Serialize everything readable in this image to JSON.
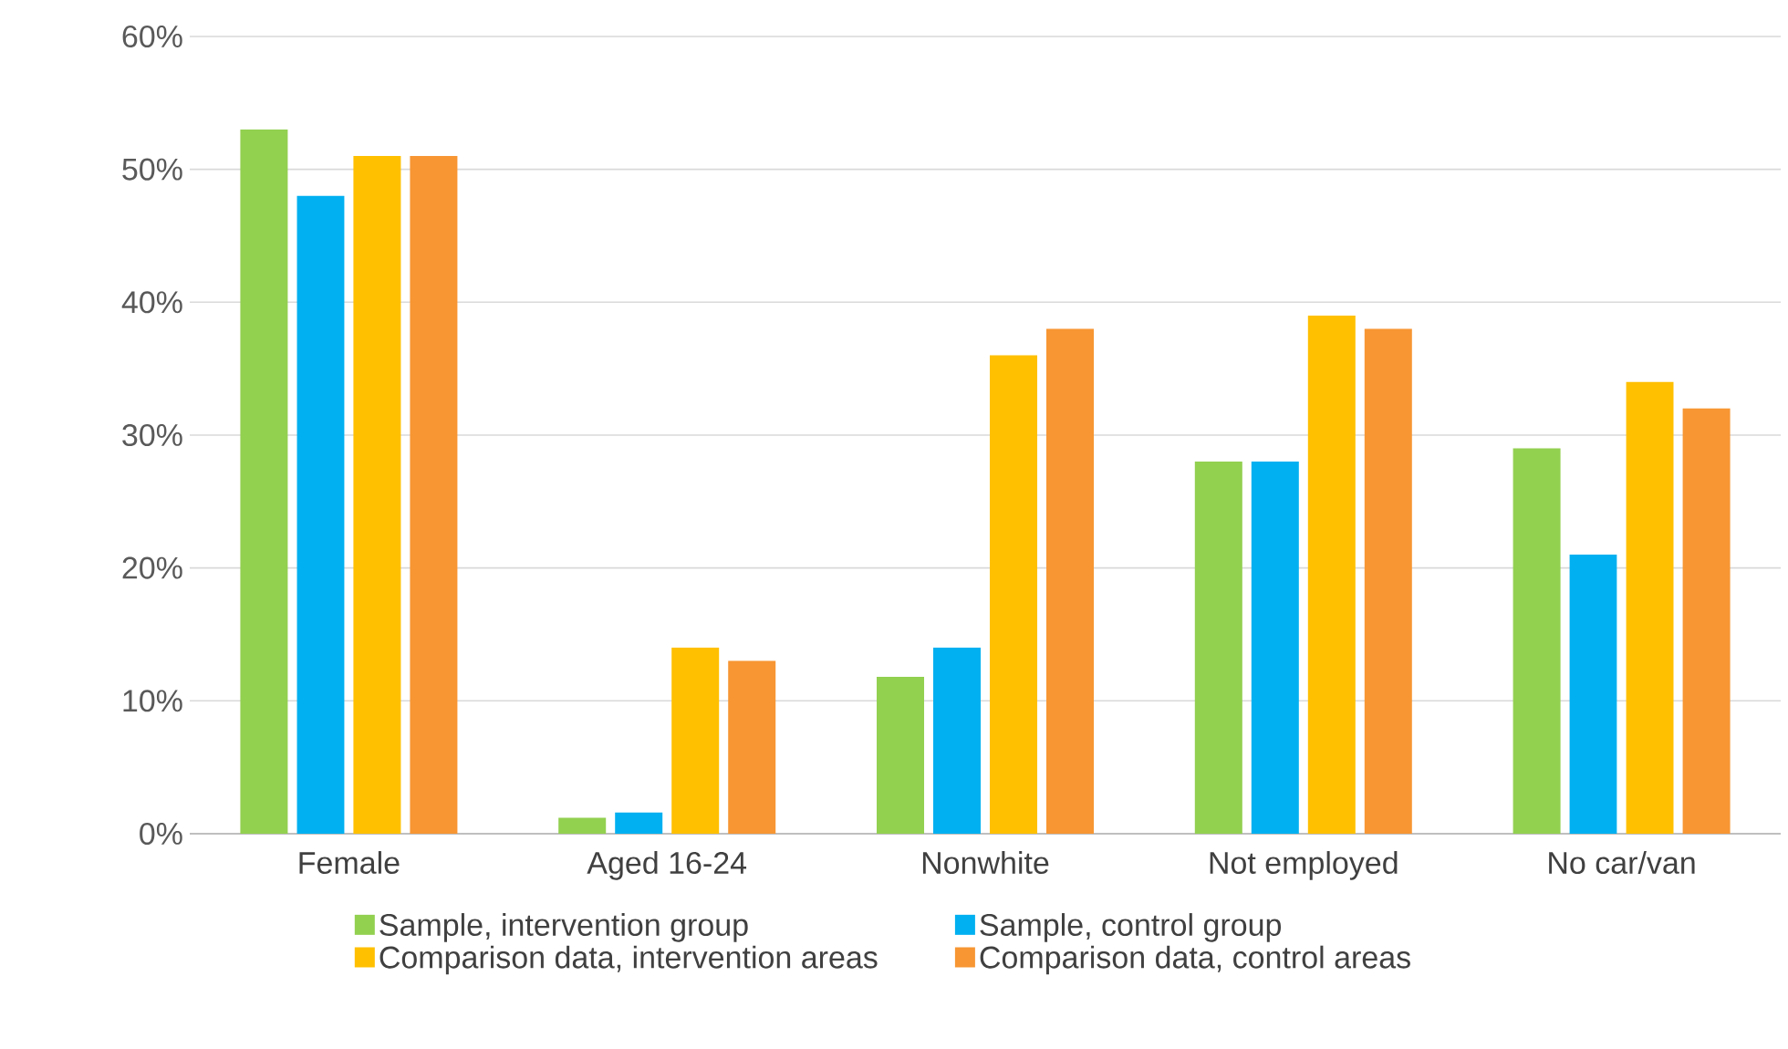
{
  "chart_data": {
    "type": "bar",
    "categories": [
      "Female",
      "Aged 16-24",
      "Nonwhite",
      "Not employed",
      "No car/van"
    ],
    "series": [
      {
        "name": "Sample, intervention group",
        "color": "#92d050",
        "values": [
          53,
          1.2,
          11.8,
          28,
          29
        ]
      },
      {
        "name": "Sample, control group",
        "color": "#00b0f0",
        "values": [
          48,
          1.6,
          14,
          28,
          21
        ]
      },
      {
        "name": "Comparison data, intervention areas",
        "color": "#ffc000",
        "values": [
          51,
          14,
          36,
          39,
          34
        ]
      },
      {
        "name": "Comparison data, control areas",
        "color": "#f79633",
        "values": [
          51,
          13,
          38,
          38,
          32
        ]
      }
    ],
    "ylim": [
      0,
      60
    ],
    "yticks": [
      {
        "value": 0,
        "label": "0%"
      },
      {
        "value": 10,
        "label": "10%"
      },
      {
        "value": 20,
        "label": "20%"
      },
      {
        "value": 30,
        "label": "30%"
      },
      {
        "value": 40,
        "label": "40%"
      },
      {
        "value": 50,
        "label": "50%"
      },
      {
        "value": 60,
        "label": "60%"
      }
    ],
    "grid": "y",
    "legend": "bottom"
  }
}
